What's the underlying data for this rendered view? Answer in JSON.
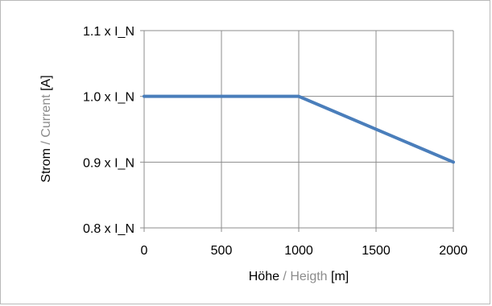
{
  "chart_data": {
    "type": "line",
    "x": [
      0,
      1000,
      2000
    ],
    "series": [
      {
        "values": [
          1.0,
          1.0,
          0.9
        ],
        "color": "#4a7ebb"
      }
    ],
    "xlim": [
      0,
      2000
    ],
    "ylim": [
      0.8,
      1.1
    ],
    "x_ticks": [
      0,
      500,
      1000,
      1500,
      2000
    ],
    "x_tick_labels": [
      "0",
      "500",
      "1000",
      "1500",
      "2000"
    ],
    "y_ticks": [
      0.8,
      0.9,
      1.0,
      1.1
    ],
    "y_tick_labels": [
      "0.8 x I_N",
      "0.9 x I_N",
      "1.0 x I_N",
      "1.1 x I_N"
    ],
    "xlabel": {
      "part1": "Höhe",
      "separator": " / ",
      "part2": "Heigth",
      "unit": " [m]"
    },
    "ylabel": {
      "part1": "Strom",
      "separator": " / ",
      "part2": "Current",
      "unit": " [A]"
    },
    "grid": true,
    "colors": {
      "axis_text": "#000000",
      "secondary_text": "#8c8c8c",
      "gridline": "#8c8c8c"
    }
  }
}
